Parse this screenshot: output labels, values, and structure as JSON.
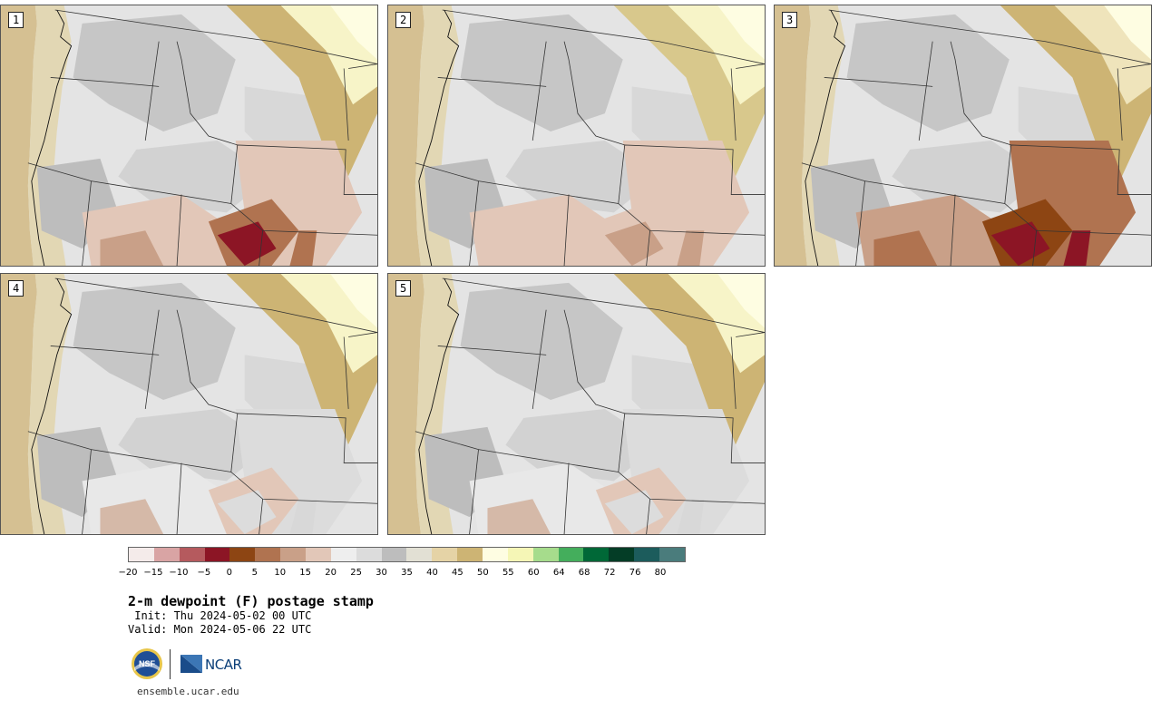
{
  "panels": [
    {
      "label": "1",
      "variant": "moderate"
    },
    {
      "label": "2",
      "variant": "light"
    },
    {
      "label": "3",
      "variant": "dry"
    },
    {
      "label": "4",
      "variant": "grey"
    },
    {
      "label": "5",
      "variant": "grey"
    }
  ],
  "colorbar": {
    "colors": [
      "#f4ebea",
      "#d9a4a4",
      "#b55a5e",
      "#8c1525",
      "#8d4513",
      "#b07350",
      "#c9a088",
      "#e2c7b8",
      "#eeeeee",
      "#dcdcdc",
      "#bdbdbd",
      "#e2e0d4",
      "#e5d3a6",
      "#cdb474",
      "#fefde2",
      "#f5f6b6",
      "#a6dc8c",
      "#44ae5c",
      "#006837",
      "#043d26",
      "#1c5c5c",
      "#4a7c7c"
    ],
    "ticks": [
      "−20",
      "−15",
      "−10",
      "−5",
      "0",
      "5",
      "10",
      "15",
      "20",
      "25",
      "30",
      "35",
      "40",
      "45",
      "50",
      "55",
      "60",
      "64",
      "68",
      "72",
      "76",
      "80"
    ]
  },
  "title": "2-m dewpoint (F) postage stamp",
  "init": " Init: Thu 2024-05-02 00 UTC",
  "valid": "Valid: Mon 2024-05-06 22 UTC",
  "logos": {
    "nsf": "NSF",
    "ncar": "NCAR"
  },
  "footer_url": "ensemble.ucar.edu"
}
